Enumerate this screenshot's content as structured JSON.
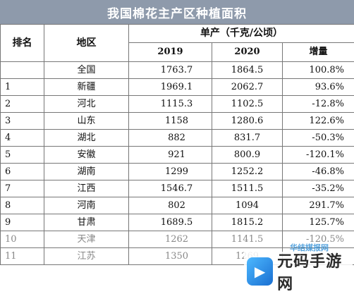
{
  "title": "我国棉花主产区种植面积",
  "headers": {
    "rank": "排名",
    "region": "地区",
    "unit": "单产（千克/公顷）",
    "y2019": "2019",
    "y2020": "2020",
    "growth": "增量"
  },
  "rows": [
    {
      "rank": "",
      "region": "全国",
      "v2019": "1763.7",
      "v2020": "1864.5",
      "growth": "100.8%"
    },
    {
      "rank": "1",
      "region": "新疆",
      "v2019": "1969.1",
      "v2020": "2062.7",
      "growth": "93.6%"
    },
    {
      "rank": "2",
      "region": "河北",
      "v2019": "1115.3",
      "v2020": "1102.5",
      "growth": "-12.8%"
    },
    {
      "rank": "3",
      "region": "山东",
      "v2019": "1158",
      "v2020": "1280.6",
      "growth": "122.6%"
    },
    {
      "rank": "4",
      "region": "湖北",
      "v2019": "882",
      "v2020": "831.7",
      "growth": "-50.3%"
    },
    {
      "rank": "5",
      "region": "安徽",
      "v2019": "921",
      "v2020": "800.9",
      "growth": "-120.1%"
    },
    {
      "rank": "6",
      "region": "湖南",
      "v2019": "1299",
      "v2020": "1252.2",
      "growth": "-46.8%"
    },
    {
      "rank": "7",
      "region": "江西",
      "v2019": "1546.7",
      "v2020": "1511.5",
      "growth": "-35.2%"
    },
    {
      "rank": "8",
      "region": "河南",
      "v2019": "802",
      "v2020": "1094",
      "growth": "291.7%"
    },
    {
      "rank": "9",
      "region": "甘肃",
      "v2019": "1689.5",
      "v2020": "1815.2",
      "growth": "125.7%"
    },
    {
      "rank": "10",
      "region": "天津",
      "v2019": "1262",
      "v2020": "1141.5",
      "growth": "-120.5%"
    },
    {
      "rank": "11",
      "region": "江苏",
      "v2019": "1350",
      "v2020": "1269",
      "growth": ""
    }
  ],
  "watermark": {
    "top_text": "华结媒报网",
    "brand_text": "元码手游网",
    "logo_icon": "game-logo-icon"
  }
}
